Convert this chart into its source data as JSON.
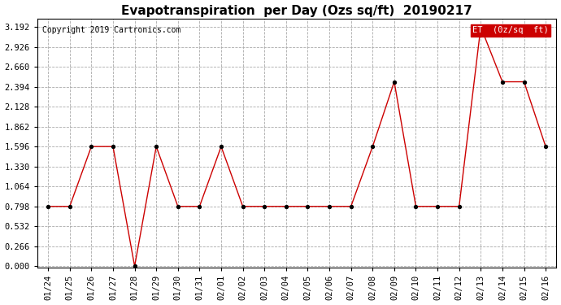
{
  "title": "Evapotranspiration  per Day (Ozs sq/ft)  20190217",
  "copyright": "Copyright 2019 Cartronics.com",
  "legend_label": "ET  (0z/sq  ft)",
  "legend_bg": "#cc0000",
  "legend_text_color": "#ffffff",
  "x_labels": [
    "01/24",
    "01/25",
    "01/26",
    "01/27",
    "01/28",
    "01/29",
    "01/30",
    "01/31",
    "02/01",
    "02/02",
    "02/03",
    "02/04",
    "02/05",
    "02/06",
    "02/07",
    "02/08",
    "02/09",
    "02/10",
    "02/11",
    "02/12",
    "02/13",
    "02/14",
    "02/15",
    "02/16"
  ],
  "y_values": [
    0.798,
    0.798,
    1.596,
    1.596,
    0.0,
    1.596,
    0.798,
    0.798,
    1.596,
    0.798,
    0.798,
    0.798,
    0.798,
    0.798,
    0.798,
    1.596,
    2.46,
    0.798,
    0.798,
    0.798,
    3.192,
    2.46,
    2.46,
    1.596
  ],
  "y_ticks": [
    0.0,
    0.266,
    0.532,
    0.798,
    1.064,
    1.33,
    1.596,
    1.862,
    2.128,
    2.394,
    2.66,
    2.926,
    3.192
  ],
  "line_color": "#cc0000",
  "marker_color": "#000000",
  "bg_color": "#ffffff",
  "plot_bg_color": "#ffffff",
  "grid_color": "#aaaaaa",
  "title_fontsize": 11,
  "copyright_fontsize": 7,
  "tick_fontsize": 7.5,
  "legend_fontsize": 7.5,
  "ylim_min": -0.02,
  "ylim_max": 3.3
}
